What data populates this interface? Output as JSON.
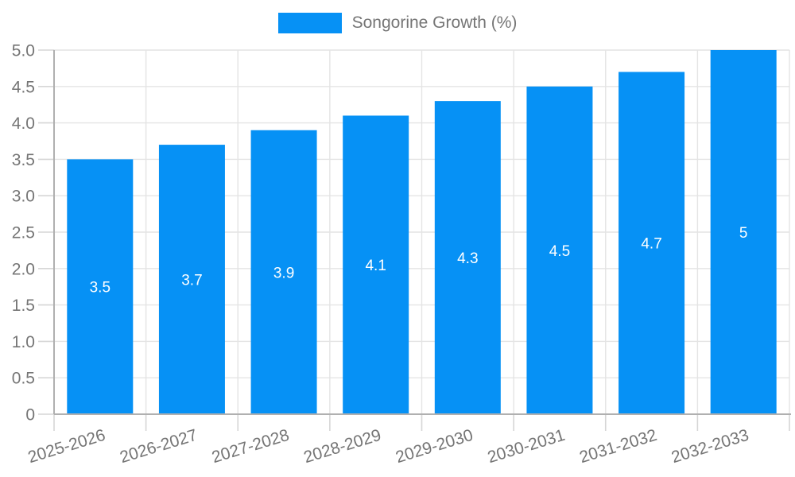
{
  "legend": {
    "label": "Songorine Growth (%)"
  },
  "chart_data": {
    "type": "bar",
    "title": "",
    "series": [
      {
        "name": "Songorine Growth (%)",
        "values": [
          3.5,
          3.7,
          3.9,
          4.1,
          4.3,
          4.5,
          4.7,
          5
        ]
      }
    ],
    "categories": [
      "2025-2026",
      "2026-2027",
      "2027-2028",
      "2028-2029",
      "2029-2030",
      "2030-2031",
      "2031-2032",
      "2032-2033"
    ],
    "value_labels": [
      "3.5",
      "3.7",
      "3.9",
      "4.1",
      "4.3",
      "4.5",
      "4.7",
      "5"
    ],
    "xlabel": "",
    "ylabel": "",
    "ylim": [
      0,
      5
    ],
    "ytick_step": 0.5,
    "ytick_labels": [
      "0",
      "0.5",
      "1.0",
      "1.5",
      "2.0",
      "2.5",
      "3.0",
      "3.5",
      "4.0",
      "4.5",
      "5.0"
    ],
    "grid": true,
    "legend_position": "top",
    "colors": {
      "bar": "#0691f5",
      "grid": "#e4e4e4",
      "tick": "#d6d6d6",
      "axis": "#b0b0b0",
      "tick_text": "#757575",
      "value_text": "#ffffff",
      "background": "#ffffff"
    }
  }
}
